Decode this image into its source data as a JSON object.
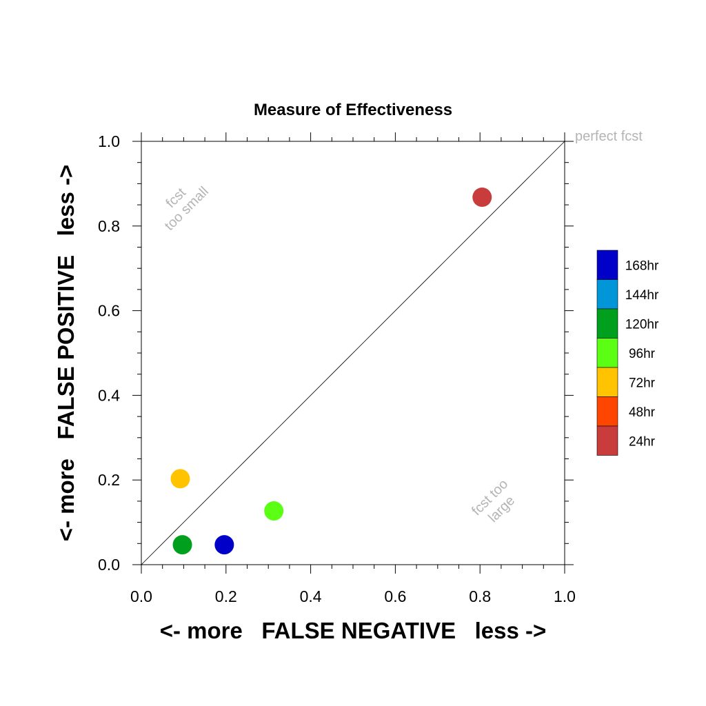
{
  "chart_data": {
    "type": "scatter",
    "title": "Measure of Effectiveness",
    "xlabel": "<- more   FALSE NEGATIVE   less ->",
    "ylabel": "<- more   FALSE POSITIVE   less ->",
    "xlim": [
      0.0,
      1.0
    ],
    "ylim": [
      0.0,
      1.0
    ],
    "xticks": [
      "0.0",
      "0.2",
      "0.4",
      "0.6",
      "0.8",
      "1.0"
    ],
    "yticks": [
      "0.0",
      "0.2",
      "0.4",
      "0.6",
      "0.8",
      "1.0"
    ],
    "grid": false,
    "diagonal_line": true,
    "annotations": {
      "perfect": "perfect fcst",
      "small_1": "fcst",
      "small_2": "too small",
      "large_1": "fcst too",
      "large_2": "large"
    },
    "legend_position": "right",
    "legend": [
      {
        "label": "168hr",
        "color": "#0000c8"
      },
      {
        "label": "144hr",
        "color": "#0096d7"
      },
      {
        "label": "120hr",
        "color": "#00a01e"
      },
      {
        "label": "96hr",
        "color": "#5aff14"
      },
      {
        "label": "72hr",
        "color": "#ffc300"
      },
      {
        "label": "48hr",
        "color": "#ff4600"
      },
      {
        "label": "24hr",
        "color": "#c83c3c"
      }
    ],
    "points": [
      {
        "series": "24hr",
        "x": 0.805,
        "y": 0.868,
        "color": "#c83c3c"
      },
      {
        "series": "72hr",
        "x": 0.092,
        "y": 0.203,
        "color": "#ffc300"
      },
      {
        "series": "96hr",
        "x": 0.313,
        "y": 0.127,
        "color": "#5aff14"
      },
      {
        "series": "120hr",
        "x": 0.097,
        "y": 0.047,
        "color": "#00a01e"
      },
      {
        "series": "168hr",
        "x": 0.196,
        "y": 0.047,
        "color": "#0000c8"
      }
    ]
  }
}
